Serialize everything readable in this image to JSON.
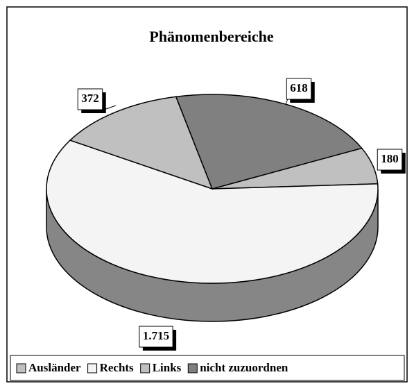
{
  "chart_data": {
    "type": "pie3d",
    "title": "Phänomenbereiche",
    "categories": [
      "Ausländer",
      "Rechts",
      "Links",
      "nicht zuzuordnen"
    ],
    "values": [
      180,
      1715,
      372,
      618
    ],
    "value_labels": [
      "180",
      "1.715",
      "372",
      "618"
    ],
    "colors": [
      "#c0c0c0",
      "#f4f4f4",
      "#c0c0c0",
      "#808080"
    ],
    "legend": "bottom"
  }
}
